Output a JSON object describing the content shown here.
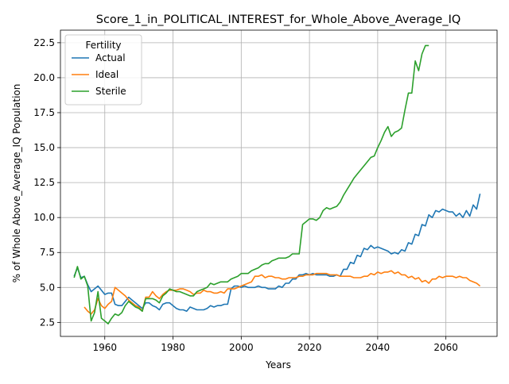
{
  "chart_data": {
    "type": "line",
    "title": "Score_1_in_POLITICAL_INTEREST_for_Whole_Above_Average_IQ",
    "xlabel": "Years",
    "ylabel": "% of Whole Above_Average_IQ Population",
    "xlim": [
      1947,
      2075
    ],
    "ylim": [
      1.5,
      23.4
    ],
    "xticks": [
      1960,
      1980,
      2000,
      2020,
      2040,
      2060
    ],
    "yticks": [
      2.5,
      5.0,
      7.5,
      10.0,
      12.5,
      15.0,
      17.5,
      20.0,
      22.5
    ],
    "ytick_labels": [
      "2.5",
      "5.0",
      "7.5",
      "10.0",
      "12.5",
      "15.0",
      "17.5",
      "20.0",
      "22.5"
    ],
    "grid": true,
    "legend": {
      "title": "Fertility",
      "placement": "top-left"
    },
    "series": [
      {
        "name": "Actual",
        "color": "#1f77b4",
        "x": [
          1951,
          1952,
          1953,
          1954,
          1955,
          1956,
          1957,
          1958,
          1959,
          1960,
          1961,
          1962,
          1963,
          1964,
          1965,
          1966,
          1967,
          1968,
          1969,
          1970,
          1971,
          1972,
          1973,
          1974,
          1975,
          1976,
          1977,
          1978,
          1979,
          1980,
          1981,
          1982,
          1983,
          1984,
          1985,
          1986,
          1987,
          1988,
          1989,
          1990,
          1991,
          1992,
          1993,
          1994,
          1995,
          1996,
          1997,
          1998,
          1999,
          2000,
          2001,
          2002,
          2003,
          2004,
          2005,
          2006,
          2007,
          2008,
          2009,
          2010,
          2011,
          2012,
          2013,
          2014,
          2015,
          2016,
          2017,
          2018,
          2019,
          2020,
          2021,
          2022,
          2023,
          2024,
          2025,
          2026,
          2027,
          2028,
          2029,
          2030,
          2031,
          2032,
          2033,
          2034,
          2035,
          2036,
          2037,
          2038,
          2039,
          2040,
          2041,
          2042,
          2043,
          2044,
          2045,
          2046,
          2047,
          2048,
          2049,
          2050,
          2051,
          2052,
          2053,
          2054,
          2055,
          2056,
          2057,
          2058,
          2059,
          2060,
          2061,
          2062,
          2063,
          2064,
          2065,
          2066,
          2067,
          2068,
          2069,
          2070
        ],
        "y": [
          5.8,
          6.4,
          5.7,
          5.8,
          5.2,
          4.7,
          4.9,
          5.1,
          4.8,
          4.5,
          4.6,
          4.6,
          3.8,
          3.7,
          3.7,
          4.0,
          4.3,
          4.1,
          3.9,
          3.7,
          3.5,
          3.9,
          3.9,
          3.7,
          3.6,
          3.4,
          3.8,
          3.9,
          3.9,
          3.7,
          3.5,
          3.4,
          3.4,
          3.3,
          3.6,
          3.5,
          3.4,
          3.4,
          3.4,
          3.5,
          3.7,
          3.6,
          3.7,
          3.7,
          3.8,
          3.8,
          4.9,
          5.1,
          5.1,
          5.0,
          5.1,
          5.0,
          5.0,
          5.0,
          5.1,
          5.0,
          5.0,
          4.9,
          4.9,
          4.9,
          5.1,
          5.0,
          5.3,
          5.3,
          5.6,
          5.6,
          5.9,
          5.9,
          6.0,
          5.9,
          6.0,
          5.9,
          5.9,
          5.9,
          5.9,
          5.8,
          5.8,
          5.9,
          5.8,
          6.3,
          6.3,
          6.8,
          6.7,
          7.3,
          7.2,
          7.8,
          7.7,
          8.0,
          7.8,
          7.9,
          7.8,
          7.7,
          7.6,
          7.4,
          7.5,
          7.4,
          7.7,
          7.6,
          8.2,
          8.1,
          8.8,
          8.7,
          9.5,
          9.4,
          10.2,
          10.0,
          10.5,
          10.4,
          10.6,
          10.5,
          10.4,
          10.4,
          10.1,
          10.3,
          10.0,
          10.5,
          10.1,
          10.9,
          10.6,
          11.7
        ]
      },
      {
        "name": "Ideal",
        "color": "#ff7f0e",
        "x": [
          1954,
          1955,
          1956,
          1957,
          1958,
          1959,
          1960,
          1961,
          1962,
          1963,
          1964,
          1965,
          1966,
          1967,
          1968,
          1969,
          1970,
          1971,
          1972,
          1973,
          1974,
          1975,
          1976,
          1977,
          1978,
          1979,
          1980,
          1981,
          1982,
          1983,
          1984,
          1985,
          1986,
          1987,
          1988,
          1989,
          1990,
          1991,
          1992,
          1993,
          1994,
          1995,
          1996,
          1997,
          1998,
          1999,
          2000,
          2001,
          2002,
          2003,
          2004,
          2005,
          2006,
          2007,
          2008,
          2009,
          2010,
          2011,
          2012,
          2013,
          2014,
          2015,
          2016,
          2017,
          2018,
          2019,
          2020,
          2021,
          2022,
          2023,
          2024,
          2025,
          2026,
          2027,
          2028,
          2029,
          2030,
          2031,
          2032,
          2033,
          2034,
          2035,
          2036,
          2037,
          2038,
          2039,
          2040,
          2041,
          2042,
          2043,
          2044,
          2045,
          2046,
          2047,
          2048,
          2049,
          2050,
          2051,
          2052,
          2053,
          2054,
          2055,
          2056,
          2057,
          2058,
          2059,
          2060,
          2061,
          2062,
          2063,
          2064,
          2065,
          2066,
          2067,
          2068,
          2069,
          2070
        ],
        "y": [
          3.6,
          3.3,
          3.1,
          3.4,
          4.2,
          3.7,
          3.5,
          3.8,
          4.0,
          5.0,
          4.8,
          4.6,
          4.4,
          4.1,
          3.9,
          3.7,
          3.6,
          3.3,
          4.3,
          4.3,
          4.7,
          4.4,
          4.2,
          4.5,
          4.7,
          4.8,
          4.8,
          4.8,
          4.9,
          4.9,
          4.8,
          4.7,
          4.5,
          4.6,
          4.6,
          4.8,
          4.7,
          4.7,
          4.6,
          4.6,
          4.7,
          4.6,
          4.9,
          4.9,
          4.9,
          5.0,
          5.1,
          5.2,
          5.3,
          5.4,
          5.8,
          5.8,
          5.9,
          5.7,
          5.8,
          5.8,
          5.7,
          5.7,
          5.6,
          5.6,
          5.7,
          5.7,
          5.7,
          5.8,
          5.8,
          5.9,
          5.9,
          5.9,
          6.0,
          6.0,
          6.0,
          6.0,
          5.9,
          5.9,
          5.9,
          5.8,
          5.8,
          5.8,
          5.8,
          5.7,
          5.7,
          5.7,
          5.8,
          5.8,
          6.0,
          5.9,
          6.1,
          6.0,
          6.1,
          6.1,
          6.2,
          6.0,
          6.1,
          5.9,
          5.9,
          5.7,
          5.8,
          5.6,
          5.7,
          5.4,
          5.5,
          5.3,
          5.6,
          5.6,
          5.8,
          5.7,
          5.8,
          5.8,
          5.8,
          5.7,
          5.8,
          5.7,
          5.7,
          5.5,
          5.4,
          5.3,
          5.1
        ]
      },
      {
        "name": "Sterile",
        "color": "#2ca02c",
        "x": [
          1951,
          1952,
          1953,
          1954,
          1955,
          1956,
          1957,
          1958,
          1959,
          1960,
          1961,
          1962,
          1963,
          1964,
          1965,
          1966,
          1967,
          1968,
          1969,
          1970,
          1971,
          1972,
          1973,
          1974,
          1975,
          1976,
          1977,
          1978,
          1979,
          1980,
          1981,
          1982,
          1983,
          1984,
          1985,
          1986,
          1987,
          1988,
          1989,
          1990,
          1991,
          1992,
          1993,
          1994,
          1995,
          1996,
          1997,
          1998,
          1999,
          2000,
          2001,
          2002,
          2003,
          2004,
          2005,
          2006,
          2007,
          2008,
          2009,
          2010,
          2011,
          2012,
          2013,
          2014,
          2015,
          2016,
          2017,
          2018,
          2019,
          2020,
          2021,
          2022,
          2023,
          2024,
          2025,
          2026,
          2027,
          2028,
          2029,
          2030,
          2031,
          2032,
          2033,
          2034,
          2035,
          2036,
          2037,
          2038,
          2039,
          2040,
          2041,
          2042,
          2043,
          2044,
          2045,
          2046,
          2047,
          2048,
          2049,
          2050,
          2051,
          2052,
          2053,
          2054,
          2055
        ],
        "y": [
          5.7,
          6.5,
          5.6,
          5.8,
          5.1,
          2.6,
          3.2,
          4.7,
          2.8,
          2.6,
          2.4,
          2.8,
          3.1,
          3.0,
          3.2,
          3.7,
          4.0,
          3.8,
          3.6,
          3.5,
          3.3,
          4.2,
          4.2,
          4.2,
          4.1,
          3.9,
          4.4,
          4.6,
          4.9,
          4.8,
          4.7,
          4.7,
          4.6,
          4.5,
          4.4,
          4.4,
          4.7,
          4.8,
          4.9,
          5.0,
          5.3,
          5.2,
          5.3,
          5.4,
          5.4,
          5.4,
          5.6,
          5.7,
          5.8,
          6.0,
          6.0,
          6.0,
          6.2,
          6.3,
          6.4,
          6.6,
          6.7,
          6.7,
          6.9,
          7.0,
          7.1,
          7.1,
          7.1,
          7.2,
          7.4,
          7.4,
          7.4,
          9.5,
          9.7,
          9.9,
          9.9,
          9.8,
          10.0,
          10.5,
          10.7,
          10.6,
          10.7,
          10.8,
          11.1,
          11.6,
          12.0,
          12.4,
          12.8,
          13.1,
          13.4,
          13.7,
          14.0,
          14.3,
          14.4,
          15.0,
          15.5,
          16.1,
          16.5,
          15.8,
          16.1,
          16.2,
          16.4,
          17.7,
          18.9,
          18.9,
          21.2,
          20.5,
          21.7,
          22.3,
          22.3
        ]
      }
    ]
  }
}
